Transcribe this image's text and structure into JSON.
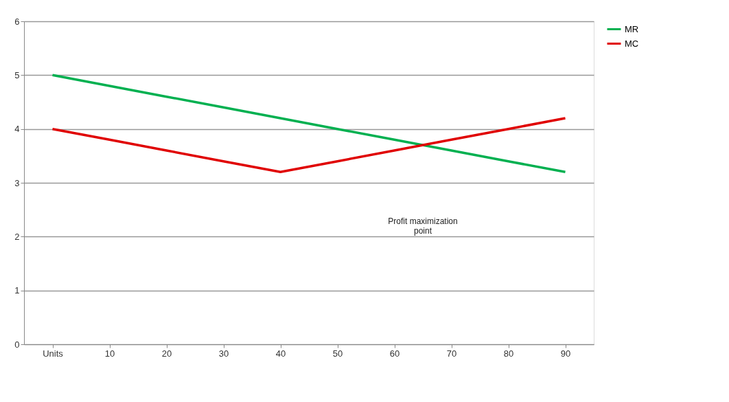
{
  "chart_data": {
    "type": "line",
    "categories": [
      "Units",
      "10",
      "20",
      "30",
      "40",
      "50",
      "60",
      "70",
      "80",
      "90"
    ],
    "series": [
      {
        "name": "MR",
        "color": "#00b050",
        "values": [
          5.0,
          4.8,
          4.6,
          4.4,
          4.2,
          4.0,
          3.8,
          3.6,
          3.4,
          3.2
        ]
      },
      {
        "name": "MC",
        "color": "#e00000",
        "values": [
          4.0,
          3.8,
          3.6,
          3.4,
          3.2,
          3.4,
          3.6,
          3.8,
          4.0,
          4.2
        ]
      }
    ],
    "ylim": [
      0,
      6
    ],
    "yticks": [
      0,
      1,
      2,
      3,
      4,
      5,
      6
    ],
    "grid": "y",
    "legend": "right",
    "marker": "none",
    "line_style": "solid",
    "annotations": [
      "Profit maximization\npoint"
    ]
  }
}
